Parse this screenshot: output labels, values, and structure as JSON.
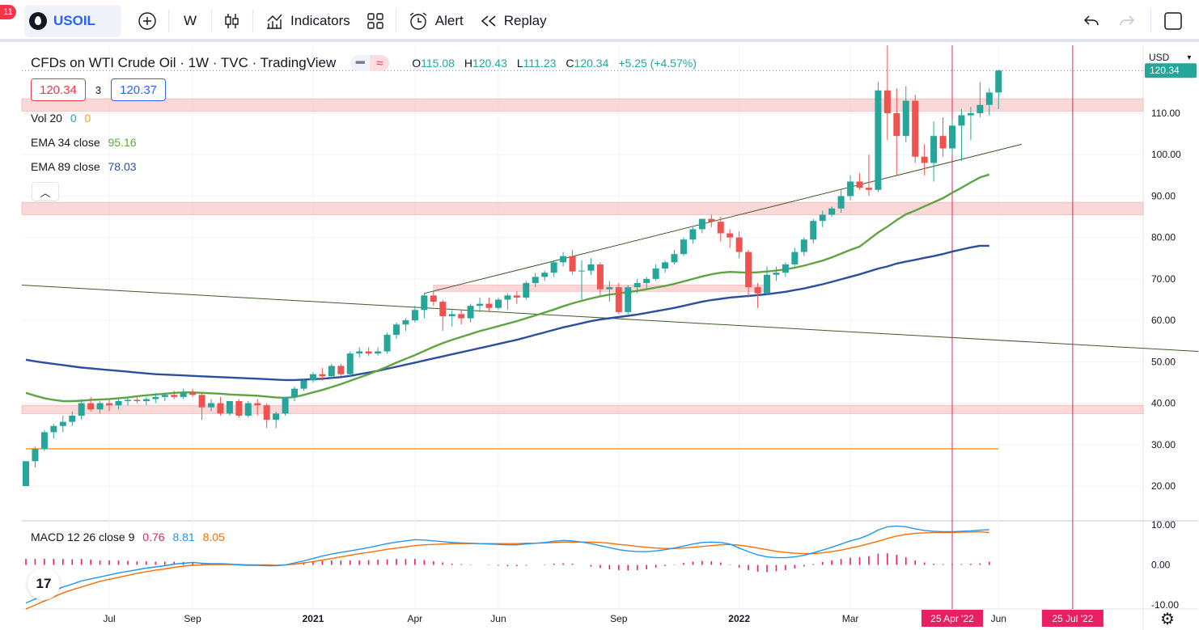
{
  "toolbar": {
    "notification_count": "11",
    "symbol": "USOIL",
    "interval": "W",
    "indicators_label": "Indicators",
    "alert_label": "Alert",
    "replay_label": "Replay"
  },
  "legend": {
    "title": "CFDs on WTI Crude Oil · 1W · TVC · TradingView",
    "ohlc": {
      "open_label": "O",
      "open": "115.08",
      "high_label": "H",
      "high": "120.43",
      "low_label": "L",
      "low": "111.23",
      "close_label": "C",
      "close": "120.34",
      "change": "+5.25 (+4.57%)"
    },
    "sell_price": "120.34",
    "spread": "3",
    "buy_price": "120.37",
    "vol": {
      "label": "Vol 20",
      "v1": "0",
      "v2": "0"
    },
    "ema34": {
      "label": "EMA 34 close",
      "value": "95.16"
    },
    "ema89": {
      "label": "EMA 89 close",
      "value": "78.03"
    },
    "macd": {
      "label": "MACD 12 26 close 9",
      "hist": "0.76",
      "macd": "8.81",
      "signal": "8.05"
    }
  },
  "axis": {
    "currency": "USD",
    "last_price_label": "120.34",
    "date_marker_1": "25 Apr '22",
    "date_marker_2": "25 Jul '22"
  },
  "colors": {
    "up": "#26a69a",
    "down": "#ef5350",
    "ema34": "#5ea541",
    "ema89": "#2d4e9e",
    "macd": "#2196f3",
    "signal": "#ff6d00",
    "hist": "#e91e63",
    "zone": "#f8c8c8",
    "marker": "#e91e63"
  },
  "chart_data": {
    "type": "candlestick",
    "title": "CFDs on WTI Crude Oil · 1W · TVC · TradingView",
    "price_axis": {
      "ticks": [
        "110.00",
        "100.00",
        "90.00",
        "80.00",
        "70.00",
        "60.00",
        "50.00",
        "40.00",
        "30.00",
        "20.00"
      ],
      "range": [
        12,
        126
      ]
    },
    "time_axis": {
      "ticks": [
        "Jul",
        "Sep",
        "2021",
        "Apr",
        "Jun",
        "Sep",
        "2022",
        "Mar",
        "Jun"
      ]
    },
    "macd_axis": {
      "ticks": [
        "10.00",
        "0.00",
        "-10.00"
      ],
      "range": [
        -11,
        11
      ]
    },
    "candles": [
      [
        20.0,
        26.0,
        20.0,
        26.0
      ],
      [
        26.0,
        29.5,
        24.5,
        29.0
      ],
      [
        29.0,
        33.5,
        28.5,
        33.0
      ],
      [
        33.0,
        35.0,
        31.5,
        34.5
      ],
      [
        34.5,
        37.0,
        33.0,
        35.5
      ],
      [
        35.5,
        38.0,
        34.5,
        37.0
      ],
      [
        37.0,
        41.0,
        36.0,
        40.0
      ],
      [
        40.0,
        41.5,
        38.0,
        38.5
      ],
      [
        38.5,
        40.5,
        37.5,
        40.0
      ],
      [
        40.0,
        41.0,
        38.0,
        39.5
      ],
      [
        39.5,
        41.0,
        38.5,
        40.5
      ],
      [
        40.5,
        41.5,
        39.5,
        40.8
      ],
      [
        40.8,
        41.5,
        40.0,
        40.5
      ],
      [
        40.5,
        41.5,
        39.5,
        41.0
      ],
      [
        41.0,
        42.5,
        40.0,
        41.5
      ],
      [
        41.5,
        42.5,
        40.5,
        42.0
      ],
      [
        42.0,
        43.0,
        41.0,
        41.5
      ],
      [
        41.5,
        43.5,
        41.0,
        42.5
      ],
      [
        42.5,
        43.5,
        41.5,
        42.0
      ],
      [
        42.0,
        42.5,
        36.0,
        39.0
      ],
      [
        39.0,
        41.0,
        38.0,
        40.0
      ],
      [
        40.0,
        41.5,
        37.0,
        37.5
      ],
      [
        37.5,
        40.5,
        37.0,
        40.5
      ],
      [
        40.5,
        41.0,
        36.5,
        37.0
      ],
      [
        37.0,
        40.5,
        36.5,
        40.0
      ],
      [
        40.0,
        41.0,
        37.0,
        39.5
      ],
      [
        39.5,
        40.0,
        34.0,
        36.0
      ],
      [
        36.0,
        38.0,
        34.0,
        37.5
      ],
      [
        37.5,
        41.5,
        37.0,
        41.5
      ],
      [
        41.5,
        44.0,
        40.5,
        43.5
      ],
      [
        43.5,
        46.0,
        43.0,
        45.5
      ],
      [
        45.5,
        47.5,
        45.0,
        47.0
      ],
      [
        47.0,
        48.5,
        45.5,
        46.5
      ],
      [
        46.5,
        49.5,
        46.0,
        49.0
      ],
      [
        49.0,
        49.5,
        46.5,
        47.0
      ],
      [
        47.0,
        52.5,
        46.5,
        52.0
      ],
      [
        52.0,
        53.5,
        51.0,
        52.5
      ],
      [
        52.5,
        53.5,
        51.5,
        52.0
      ],
      [
        52.0,
        53.5,
        51.5,
        52.5
      ],
      [
        52.5,
        57.0,
        52.0,
        56.5
      ],
      [
        56.5,
        59.5,
        55.5,
        59.0
      ],
      [
        59.0,
        60.5,
        57.5,
        60.0
      ],
      [
        60.0,
        63.5,
        59.5,
        62.5
      ],
      [
        62.5,
        66.5,
        60.5,
        66.0
      ],
      [
        66.0,
        67.0,
        63.5,
        64.5
      ],
      [
        64.5,
        65.0,
        57.5,
        61.0
      ],
      [
        61.0,
        62.5,
        58.5,
        61.5
      ],
      [
        61.5,
        62.5,
        59.0,
        60.5
      ],
      [
        60.5,
        64.0,
        59.5,
        63.5
      ],
      [
        63.5,
        65.5,
        62.0,
        64.0
      ],
      [
        64.0,
        65.5,
        62.0,
        63.0
      ],
      [
        63.0,
        65.5,
        62.5,
        65.0
      ],
      [
        65.0,
        66.5,
        62.5,
        66.0
      ],
      [
        66.0,
        67.0,
        64.0,
        65.5
      ],
      [
        65.5,
        69.5,
        65.0,
        69.0
      ],
      [
        69.0,
        71.5,
        68.0,
        70.5
      ],
      [
        70.5,
        72.0,
        69.5,
        71.5
      ],
      [
        71.5,
        74.5,
        70.5,
        74.0
      ],
      [
        74.0,
        76.5,
        73.0,
        75.5
      ],
      [
        75.5,
        77.0,
        71.0,
        71.8
      ],
      [
        71.8,
        74.5,
        65.0,
        72.0
      ],
      [
        72.0,
        75.0,
        71.0,
        73.5
      ],
      [
        73.5,
        74.0,
        66.0,
        67.5
      ],
      [
        67.5,
        69.5,
        64.5,
        68.0
      ],
      [
        68.0,
        69.0,
        61.5,
        62.0
      ],
      [
        62.0,
        68.5,
        61.5,
        68.0
      ],
      [
        68.0,
        70.0,
        66.5,
        69.0
      ],
      [
        69.0,
        70.5,
        67.5,
        70.0
      ],
      [
        70.0,
        73.5,
        69.5,
        72.5
      ],
      [
        72.5,
        74.5,
        71.5,
        74.0
      ],
      [
        74.0,
        77.0,
        73.5,
        76.0
      ],
      [
        76.0,
        80.0,
        75.5,
        79.5
      ],
      [
        79.5,
        82.5,
        78.5,
        82.0
      ],
      [
        82.0,
        84.5,
        81.0,
        84.5
      ],
      [
        84.5,
        85.5,
        82.5,
        83.8
      ],
      [
        83.8,
        85.0,
        79.0,
        81.0
      ],
      [
        81.0,
        82.0,
        77.5,
        80.0
      ],
      [
        80.0,
        81.5,
        75.0,
        76.5
      ],
      [
        76.5,
        77.0,
        65.5,
        68.0
      ],
      [
        68.0,
        69.0,
        63.0,
        66.5
      ],
      [
        66.5,
        73.0,
        66.0,
        71.0
      ],
      [
        71.0,
        73.0,
        69.5,
        71.5
      ],
      [
        71.5,
        74.0,
        70.5,
        73.5
      ],
      [
        73.5,
        77.5,
        73.0,
        76.5
      ],
      [
        76.5,
        80.0,
        75.5,
        79.5
      ],
      [
        79.5,
        84.5,
        78.5,
        84.0
      ],
      [
        84.0,
        86.5,
        82.5,
        85.5
      ],
      [
        85.5,
        87.5,
        85.0,
        87.0
      ],
      [
        87.0,
        91.5,
        86.0,
        90.0
      ],
      [
        90.0,
        95.0,
        89.0,
        93.5
      ],
      [
        93.5,
        95.5,
        91.5,
        92.0
      ],
      [
        92.0,
        100.0,
        90.0,
        91.5
      ],
      [
        91.5,
        117.5,
        91.0,
        115.5
      ],
      [
        115.5,
        130.5,
        103.5,
        110.0
      ],
      [
        110.0,
        116.0,
        95.0,
        104.5
      ],
      [
        104.5,
        116.5,
        103.0,
        113.0
      ],
      [
        113.0,
        114.5,
        98.0,
        99.5
      ],
      [
        99.5,
        102.5,
        95.0,
        98.0
      ],
      [
        98.0,
        108.0,
        93.5,
        104.5
      ],
      [
        104.5,
        109.0,
        99.5,
        101.5
      ],
      [
        101.5,
        108.5,
        100.0,
        107.0
      ],
      [
        107.0,
        111.0,
        98.5,
        109.5
      ],
      [
        109.5,
        111.5,
        103.5,
        110.0
      ],
      [
        110.0,
        117.5,
        109.0,
        112.0
      ],
      [
        112.0,
        116.0,
        109.5,
        115.0
      ],
      [
        115.0,
        120.5,
        111.0,
        120.3
      ]
    ],
    "ema34": [
      42.5,
      41.8,
      41.2,
      40.8,
      40.5,
      40.5,
      40.6,
      40.8,
      40.9,
      41.0,
      41.2,
      41.4,
      41.7,
      41.9,
      42.1,
      42.3,
      42.5,
      42.6,
      42.6,
      42.5,
      42.4,
      42.3,
      42.1,
      42.0,
      41.9,
      41.8,
      41.6,
      41.4,
      41.3,
      41.5,
      42.0,
      42.6,
      43.2,
      43.9,
      44.6,
      45.4,
      46.2,
      47.0,
      47.9,
      48.8,
      49.8,
      50.7,
      51.6,
      52.6,
      53.6,
      54.5,
      55.3,
      56.0,
      56.7,
      57.4,
      58.0,
      58.6,
      59.2,
      59.8,
      60.5,
      61.2,
      61.9,
      62.6,
      63.4,
      64.1,
      64.7,
      65.3,
      65.8,
      66.2,
      66.5,
      66.8,
      67.1,
      67.5,
      67.9,
      68.3,
      68.8,
      69.4,
      70.0,
      70.6,
      71.1,
      71.5,
      71.7,
      71.6,
      71.5,
      71.6,
      71.8,
      72.0,
      72.3,
      72.7,
      73.2,
      73.8,
      74.4,
      75.2,
      76.1,
      77.0,
      77.8,
      79.5,
      81.2,
      82.6,
      84.2,
      85.6,
      86.5,
      87.5,
      88.5,
      89.5,
      90.8,
      92.0,
      93.3,
      94.5,
      95.2
    ],
    "ema89": [
      50.5,
      50.1,
      49.8,
      49.5,
      49.2,
      48.9,
      48.6,
      48.4,
      48.2,
      48.0,
      47.8,
      47.6,
      47.4,
      47.2,
      47.0,
      46.9,
      46.8,
      46.7,
      46.6,
      46.5,
      46.4,
      46.3,
      46.2,
      46.1,
      46.0,
      45.9,
      45.8,
      45.7,
      45.6,
      45.6,
      45.7,
      45.8,
      45.9,
      46.1,
      46.3,
      46.6,
      47.0,
      47.4,
      47.8,
      48.3,
      48.8,
      49.3,
      49.8,
      50.3,
      50.8,
      51.3,
      51.8,
      52.3,
      52.8,
      53.3,
      53.8,
      54.3,
      54.8,
      55.3,
      55.9,
      56.5,
      57.1,
      57.7,
      58.3,
      58.8,
      59.3,
      59.8,
      60.2,
      60.5,
      60.8,
      61.1,
      61.4,
      61.8,
      62.2,
      62.6,
      63.0,
      63.5,
      64.0,
      64.5,
      64.9,
      65.2,
      65.5,
      65.7,
      65.9,
      66.1,
      66.3,
      66.6,
      66.9,
      67.3,
      67.7,
      68.2,
      68.7,
      69.3,
      69.9,
      70.5,
      71.1,
      71.8,
      72.5,
      73.0,
      73.7,
      74.2,
      74.6,
      75.1,
      75.5,
      76.0,
      76.6,
      77.1,
      77.6,
      78.0,
      78.0
    ],
    "macd": [
      -9.5,
      -8.5,
      -7.5,
      -6.5,
      -5.5,
      -4.8,
      -4.0,
      -3.5,
      -3.0,
      -2.5,
      -2.0,
      -1.6,
      -1.2,
      -0.8,
      -0.5,
      -0.2,
      0.2,
      0.4,
      0.6,
      0.4,
      0.3,
      0.3,
      0.2,
      0.0,
      -0.1,
      -0.1,
      -0.2,
      -0.2,
      0.0,
      0.5,
      1.0,
      1.6,
      2.2,
      2.7,
      3.1,
      3.5,
      3.9,
      4.3,
      4.8,
      5.3,
      5.7,
      6.0,
      6.3,
      6.2,
      6.0,
      5.8,
      5.6,
      5.5,
      5.4,
      5.3,
      5.2,
      5.1,
      5.0,
      5.0,
      5.2,
      5.4,
      5.6,
      5.9,
      6.1,
      6.0,
      5.7,
      5.3,
      4.8,
      4.3,
      3.8,
      3.5,
      3.3,
      3.3,
      3.5,
      3.8,
      4.2,
      4.7,
      5.2,
      5.6,
      5.7,
      5.6,
      5.2,
      4.2,
      3.3,
      2.5,
      2.0,
      1.8,
      1.8,
      2.0,
      2.4,
      3.0,
      3.7,
      4.4,
      5.2,
      6.0,
      6.6,
      7.5,
      8.7,
      9.5,
      9.7,
      9.5,
      9.0,
      8.6,
      8.4,
      8.3,
      8.3,
      8.4,
      8.5,
      8.7,
      8.81
    ],
    "signal": [
      -11.0,
      -10.0,
      -9.0,
      -8.0,
      -7.0,
      -6.2,
      -5.5,
      -4.8,
      -4.1,
      -3.6,
      -3.1,
      -2.6,
      -2.1,
      -1.7,
      -1.3,
      -1.0,
      -0.6,
      -0.3,
      -0.1,
      0.0,
      0.1,
      0.1,
      0.1,
      0.1,
      0.0,
      0.0,
      0.0,
      -0.1,
      0.0,
      0.2,
      0.5,
      0.8,
      1.2,
      1.6,
      2.0,
      2.4,
      2.8,
      3.1,
      3.5,
      3.9,
      4.2,
      4.5,
      4.8,
      5.0,
      5.1,
      5.2,
      5.3,
      5.3,
      5.3,
      5.3,
      5.3,
      5.3,
      5.3,
      5.3,
      5.4,
      5.4,
      5.5,
      5.6,
      5.7,
      5.7,
      5.7,
      5.7,
      5.6,
      5.4,
      5.1,
      4.9,
      4.6,
      4.4,
      4.2,
      4.1,
      4.1,
      4.2,
      4.4,
      4.6,
      4.8,
      5.0,
      5.1,
      4.9,
      4.6,
      4.2,
      3.8,
      3.4,
      3.1,
      2.9,
      2.8,
      2.8,
      3.0,
      3.3,
      3.7,
      4.2,
      4.7,
      5.3,
      5.9,
      6.6,
      7.2,
      7.6,
      7.9,
      8.0,
      8.1,
      8.1,
      8.1,
      8.2,
      8.2,
      8.3,
      8.05
    ],
    "hist": [
      1.5,
      1.5,
      1.5,
      1.5,
      1.5,
      1.4,
      1.5,
      1.3,
      1.1,
      1.1,
      1.1,
      1.0,
      0.9,
      0.9,
      0.8,
      0.8,
      0.8,
      0.7,
      0.7,
      0.4,
      0.2,
      0.2,
      0.1,
      -0.1,
      -0.1,
      -0.1,
      -0.2,
      -0.1,
      0.0,
      0.3,
      0.5,
      0.8,
      1.0,
      1.1,
      1.1,
      1.1,
      1.1,
      1.2,
      1.3,
      1.4,
      1.5,
      1.5,
      1.5,
      1.2,
      0.9,
      0.6,
      0.3,
      0.2,
      0.1,
      0.0,
      -0.1,
      -0.2,
      -0.3,
      -0.3,
      -0.2,
      0.0,
      0.1,
      0.3,
      0.4,
      0.3,
      0.0,
      -0.4,
      -0.8,
      -1.1,
      -1.3,
      -1.4,
      -1.3,
      -1.1,
      -0.7,
      -0.3,
      0.1,
      0.5,
      0.8,
      1.0,
      0.9,
      0.6,
      0.1,
      -0.7,
      -1.3,
      -1.7,
      -1.8,
      -1.6,
      -1.3,
      -0.9,
      -0.4,
      0.2,
      0.7,
      1.1,
      1.5,
      1.8,
      1.9,
      2.2,
      2.8,
      2.9,
      2.5,
      1.9,
      1.1,
      0.6,
      0.3,
      0.2,
      0.2,
      0.2,
      0.3,
      0.4,
      0.76
    ],
    "annotations": {
      "support_zones": [
        [
          37.5,
          39.5
        ],
        [
          85.5,
          88.5
        ],
        [
          110.5,
          113.5
        ]
      ],
      "horizontal_line": 29.0,
      "small_zone": {
        "from_index": 44,
        "to_index": 80,
        "low": 67.0,
        "high": 68.5
      }
    }
  }
}
